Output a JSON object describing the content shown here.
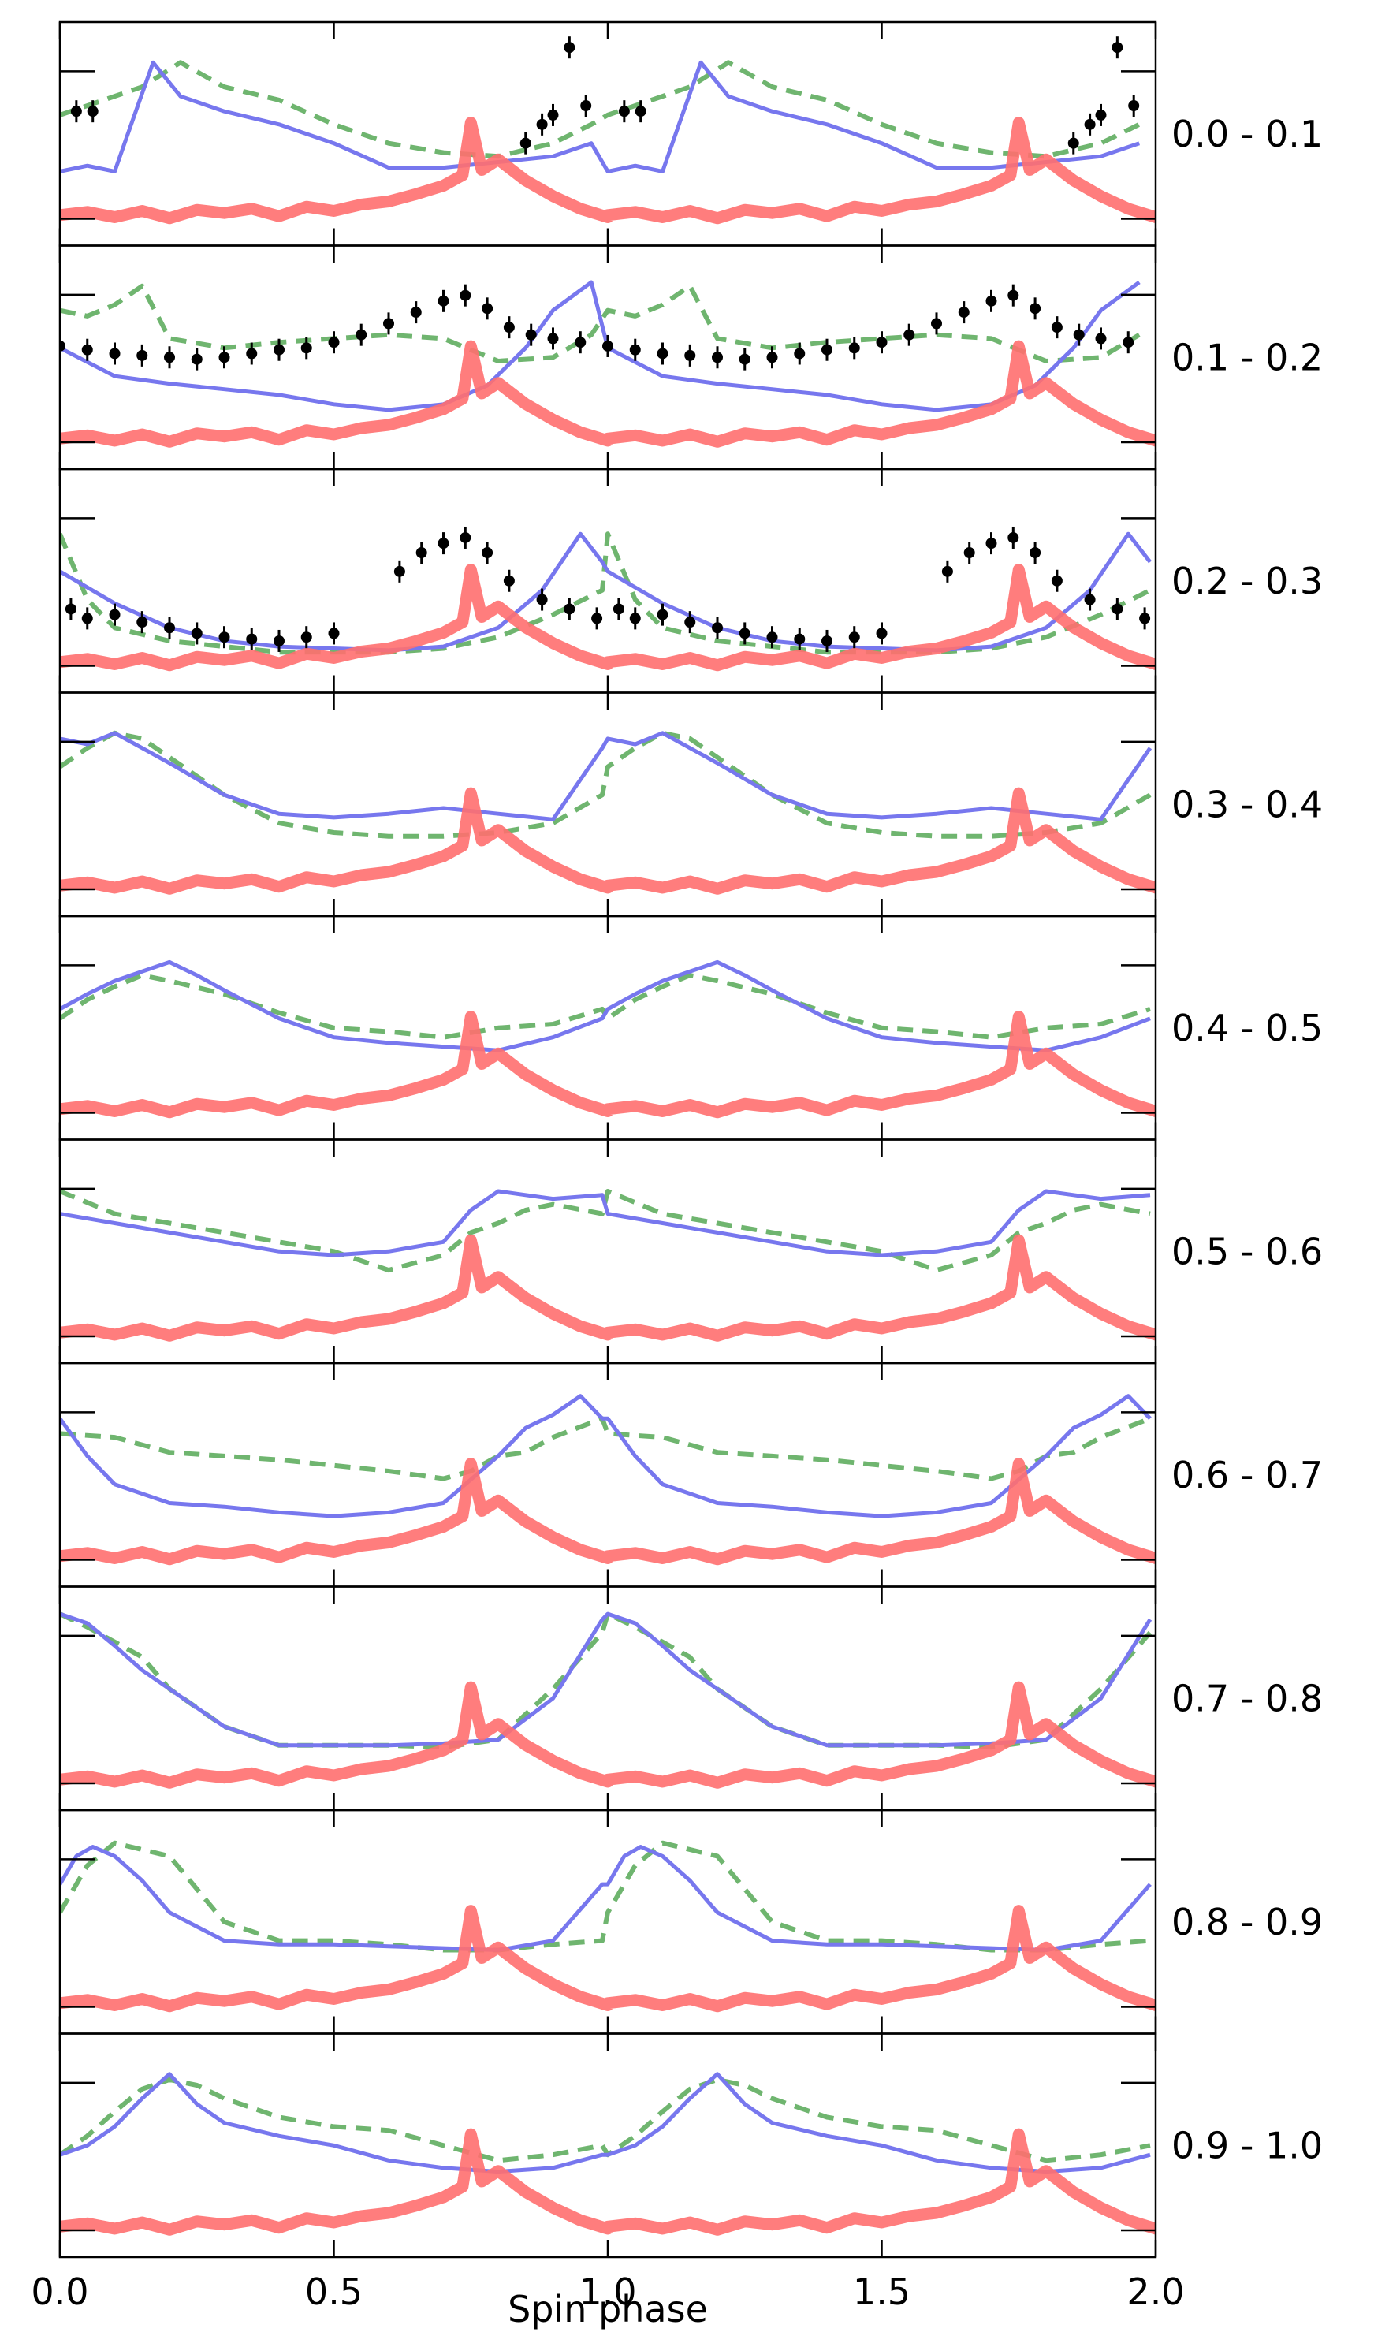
{
  "chart_data": {
    "type": "line",
    "xlabel": "Spin phase",
    "xlim": [
      0.0,
      2.0
    ],
    "x_ticks": [
      "0.0",
      "0.5",
      "1.0",
      "1.5",
      "2.0"
    ],
    "x_tick_values": [
      0.0,
      0.5,
      1.0,
      1.5,
      2.0
    ],
    "colors": {
      "red": "#ff6f6f",
      "blue": "#7777ee",
      "green": "#6fb56f",
      "points": "#000000"
    },
    "reference_profile": {
      "x": [
        0.0,
        0.05,
        0.1,
        0.15,
        0.2,
        0.25,
        0.3,
        0.35,
        0.4,
        0.45,
        0.5,
        0.55,
        0.6,
        0.65,
        0.7,
        0.735,
        0.75,
        0.77,
        0.8,
        0.85,
        0.9,
        0.95,
        1.0
      ],
      "y": [
        0.12,
        0.15,
        0.1,
        0.16,
        0.09,
        0.17,
        0.14,
        0.18,
        0.11,
        0.2,
        0.16,
        0.22,
        0.25,
        0.32,
        0.4,
        0.5,
        1.0,
        0.55,
        0.65,
        0.45,
        0.3,
        0.18,
        0.1
      ]
    },
    "panels": [
      {
        "label": "0.0 - 0.1",
        "blue": {
          "x": [
            0,
            0.05,
            0.1,
            0.13,
            0.17,
            0.22,
            0.3,
            0.4,
            0.5,
            0.6,
            0.7,
            0.8,
            0.9,
            0.97
          ],
          "y": [
            0.3,
            0.33,
            0.3,
            0.55,
            0.88,
            0.7,
            0.62,
            0.55,
            0.45,
            0.32,
            0.32,
            0.35,
            0.38,
            0.45
          ]
        },
        "green": {
          "x": [
            0,
            0.1,
            0.15,
            0.22,
            0.3,
            0.4,
            0.5,
            0.6,
            0.7,
            0.8,
            0.9,
            0.97
          ],
          "y": [
            0.6,
            0.7,
            0.75,
            0.88,
            0.75,
            0.68,
            0.55,
            0.45,
            0.4,
            0.38,
            0.45,
            0.55
          ]
        },
        "points": {
          "x": [
            0.03,
            0.06,
            0.85,
            0.88,
            0.9,
            0.93,
            0.96
          ],
          "y": [
            0.62,
            0.62,
            0.45,
            0.55,
            0.6,
            0.96,
            0.65
          ]
        }
      },
      {
        "label": "0.1 - 0.2",
        "blue": {
          "x": [
            0,
            0.1,
            0.2,
            0.3,
            0.4,
            0.5,
            0.6,
            0.7,
            0.78,
            0.85,
            0.9,
            0.97
          ],
          "y": [
            0.55,
            0.4,
            0.36,
            0.33,
            0.3,
            0.25,
            0.22,
            0.25,
            0.35,
            0.55,
            0.75,
            0.9
          ]
        },
        "green": {
          "x": [
            0,
            0.05,
            0.1,
            0.15,
            0.2,
            0.3,
            0.4,
            0.5,
            0.6,
            0.7,
            0.8,
            0.9,
            0.97
          ],
          "y": [
            0.75,
            0.72,
            0.78,
            0.88,
            0.6,
            0.55,
            0.58,
            0.6,
            0.62,
            0.6,
            0.48,
            0.5,
            0.62
          ]
        },
        "points": {
          "x": [
            0.0,
            0.05,
            0.1,
            0.15,
            0.2,
            0.25,
            0.3,
            0.35,
            0.4,
            0.45,
            0.5,
            0.55,
            0.6,
            0.65,
            0.7,
            0.74,
            0.78,
            0.82,
            0.86,
            0.9,
            0.95
          ],
          "y": [
            0.56,
            0.54,
            0.52,
            0.51,
            0.5,
            0.49,
            0.5,
            0.52,
            0.54,
            0.55,
            0.58,
            0.62,
            0.68,
            0.74,
            0.8,
            0.83,
            0.76,
            0.66,
            0.62,
            0.6,
            0.58
          ]
        }
      },
      {
        "label": "0.2 - 0.3",
        "blue": {
          "x": [
            0,
            0.1,
            0.2,
            0.3,
            0.4,
            0.5,
            0.6,
            0.7,
            0.8,
            0.88,
            0.95,
            0.99
          ],
          "y": [
            0.55,
            0.38,
            0.25,
            0.18,
            0.15,
            0.14,
            0.13,
            0.15,
            0.25,
            0.45,
            0.75,
            0.6
          ]
        },
        "green": {
          "x": [
            0,
            0.05,
            0.1,
            0.2,
            0.3,
            0.4,
            0.5,
            0.6,
            0.7,
            0.8,
            0.9,
            0.99
          ],
          "y": [
            0.75,
            0.4,
            0.25,
            0.18,
            0.15,
            0.12,
            0.12,
            0.12,
            0.14,
            0.2,
            0.32,
            0.45
          ]
        },
        "points": {
          "x": [
            0.02,
            0.05,
            0.1,
            0.15,
            0.2,
            0.25,
            0.3,
            0.35,
            0.4,
            0.45,
            0.5,
            0.62,
            0.66,
            0.7,
            0.74,
            0.78,
            0.82,
            0.88,
            0.93,
            0.98
          ],
          "y": [
            0.35,
            0.3,
            0.32,
            0.28,
            0.25,
            0.22,
            0.2,
            0.19,
            0.18,
            0.2,
            0.22,
            0.55,
            0.65,
            0.7,
            0.73,
            0.65,
            0.5,
            0.4,
            0.35,
            0.3
          ]
        }
      },
      {
        "label": "0.3 - 0.4",
        "blue": {
          "x": [
            0,
            0.05,
            0.1,
            0.15,
            0.2,
            0.3,
            0.4,
            0.5,
            0.6,
            0.7,
            0.8,
            0.9,
            0.99
          ],
          "y": [
            0.85,
            0.82,
            0.88,
            0.8,
            0.72,
            0.55,
            0.45,
            0.43,
            0.45,
            0.48,
            0.45,
            0.42,
            0.8
          ]
        },
        "green": {
          "x": [
            0,
            0.05,
            0.1,
            0.15,
            0.2,
            0.3,
            0.4,
            0.5,
            0.6,
            0.7,
            0.8,
            0.9,
            0.99
          ],
          "y": [
            0.7,
            0.8,
            0.88,
            0.85,
            0.75,
            0.55,
            0.4,
            0.35,
            0.33,
            0.33,
            0.35,
            0.4,
            0.55
          ]
        }
      },
      {
        "label": "0.4 - 0.5",
        "blue": {
          "x": [
            0,
            0.05,
            0.1,
            0.15,
            0.2,
            0.25,
            0.3,
            0.4,
            0.5,
            0.6,
            0.7,
            0.8,
            0.9,
            0.99
          ],
          "y": [
            0.6,
            0.68,
            0.75,
            0.8,
            0.85,
            0.78,
            0.7,
            0.55,
            0.45,
            0.42,
            0.4,
            0.38,
            0.45,
            0.55
          ]
        },
        "green": {
          "x": [
            0,
            0.05,
            0.1,
            0.15,
            0.2,
            0.3,
            0.4,
            0.5,
            0.6,
            0.7,
            0.8,
            0.9,
            0.99
          ],
          "y": [
            0.55,
            0.65,
            0.72,
            0.78,
            0.75,
            0.68,
            0.58,
            0.5,
            0.48,
            0.45,
            0.5,
            0.52,
            0.6
          ]
        }
      },
      {
        "label": "0.5 - 0.6",
        "blue": {
          "x": [
            0,
            0.1,
            0.2,
            0.3,
            0.4,
            0.5,
            0.6,
            0.7,
            0.75,
            0.8,
            0.85,
            0.9,
            0.99
          ],
          "y": [
            0.7,
            0.65,
            0.6,
            0.55,
            0.5,
            0.48,
            0.5,
            0.55,
            0.72,
            0.82,
            0.8,
            0.78,
            0.8
          ]
        },
        "green": {
          "x": [
            0,
            0.1,
            0.2,
            0.3,
            0.4,
            0.5,
            0.55,
            0.6,
            0.7,
            0.75,
            0.8,
            0.85,
            0.9,
            0.99
          ],
          "y": [
            0.82,
            0.7,
            0.65,
            0.6,
            0.55,
            0.5,
            0.45,
            0.4,
            0.48,
            0.6,
            0.65,
            0.72,
            0.75,
            0.7
          ]
        }
      },
      {
        "label": "0.6 - 0.7",
        "blue": {
          "x": [
            0,
            0.05,
            0.1,
            0.2,
            0.3,
            0.4,
            0.5,
            0.6,
            0.7,
            0.8,
            0.85,
            0.9,
            0.95,
            0.99
          ],
          "y": [
            0.8,
            0.6,
            0.45,
            0.35,
            0.33,
            0.3,
            0.28,
            0.3,
            0.35,
            0.6,
            0.75,
            0.82,
            0.92,
            0.8
          ]
        },
        "green": {
          "x": [
            0,
            0.1,
            0.2,
            0.3,
            0.4,
            0.5,
            0.6,
            0.7,
            0.75,
            0.8,
            0.85,
            0.9,
            0.99
          ],
          "y": [
            0.72,
            0.7,
            0.62,
            0.6,
            0.58,
            0.55,
            0.52,
            0.48,
            0.52,
            0.6,
            0.62,
            0.7,
            0.8
          ]
        }
      },
      {
        "label": "0.7 - 0.8",
        "blue": {
          "x": [
            0,
            0.05,
            0.1,
            0.15,
            0.2,
            0.3,
            0.4,
            0.5,
            0.6,
            0.7,
            0.8,
            0.9,
            0.99
          ],
          "y": [
            0.95,
            0.9,
            0.78,
            0.65,
            0.55,
            0.35,
            0.25,
            0.25,
            0.25,
            0.26,
            0.28,
            0.5,
            0.92
          ]
        },
        "green": {
          "x": [
            0,
            0.05,
            0.1,
            0.15,
            0.2,
            0.3,
            0.4,
            0.5,
            0.6,
            0.7,
            0.8,
            0.9,
            0.99
          ],
          "y": [
            0.95,
            0.88,
            0.8,
            0.72,
            0.55,
            0.35,
            0.25,
            0.25,
            0.25,
            0.24,
            0.28,
            0.55,
            0.85
          ]
        }
      },
      {
        "label": "0.8 - 0.9",
        "blue": {
          "x": [
            0,
            0.03,
            0.06,
            0.1,
            0.15,
            0.2,
            0.3,
            0.4,
            0.5,
            0.6,
            0.7,
            0.8,
            0.9,
            0.99
          ],
          "y": [
            0.7,
            0.85,
            0.9,
            0.85,
            0.72,
            0.55,
            0.4,
            0.38,
            0.38,
            0.37,
            0.36,
            0.35,
            0.4,
            0.7
          ]
        },
        "green": {
          "x": [
            0,
            0.05,
            0.1,
            0.2,
            0.3,
            0.4,
            0.5,
            0.6,
            0.7,
            0.8,
            0.9,
            0.99
          ],
          "y": [
            0.55,
            0.8,
            0.92,
            0.85,
            0.5,
            0.4,
            0.4,
            0.38,
            0.35,
            0.35,
            0.38,
            0.4
          ]
        }
      },
      {
        "label": "0.9 - 1.0",
        "blue": {
          "x": [
            0,
            0.05,
            0.1,
            0.15,
            0.2,
            0.25,
            0.3,
            0.4,
            0.5,
            0.6,
            0.7,
            0.8,
            0.9,
            0.99
          ],
          "y": [
            0.45,
            0.5,
            0.6,
            0.75,
            0.88,
            0.72,
            0.62,
            0.55,
            0.5,
            0.42,
            0.38,
            0.36,
            0.38,
            0.45
          ]
        },
        "green": {
          "x": [
            0,
            0.05,
            0.1,
            0.15,
            0.2,
            0.25,
            0.3,
            0.4,
            0.5,
            0.6,
            0.7,
            0.8,
            0.9,
            0.99
          ],
          "y": [
            0.45,
            0.55,
            0.68,
            0.8,
            0.85,
            0.82,
            0.75,
            0.65,
            0.6,
            0.58,
            0.5,
            0.42,
            0.45,
            0.5
          ]
        }
      }
    ]
  }
}
